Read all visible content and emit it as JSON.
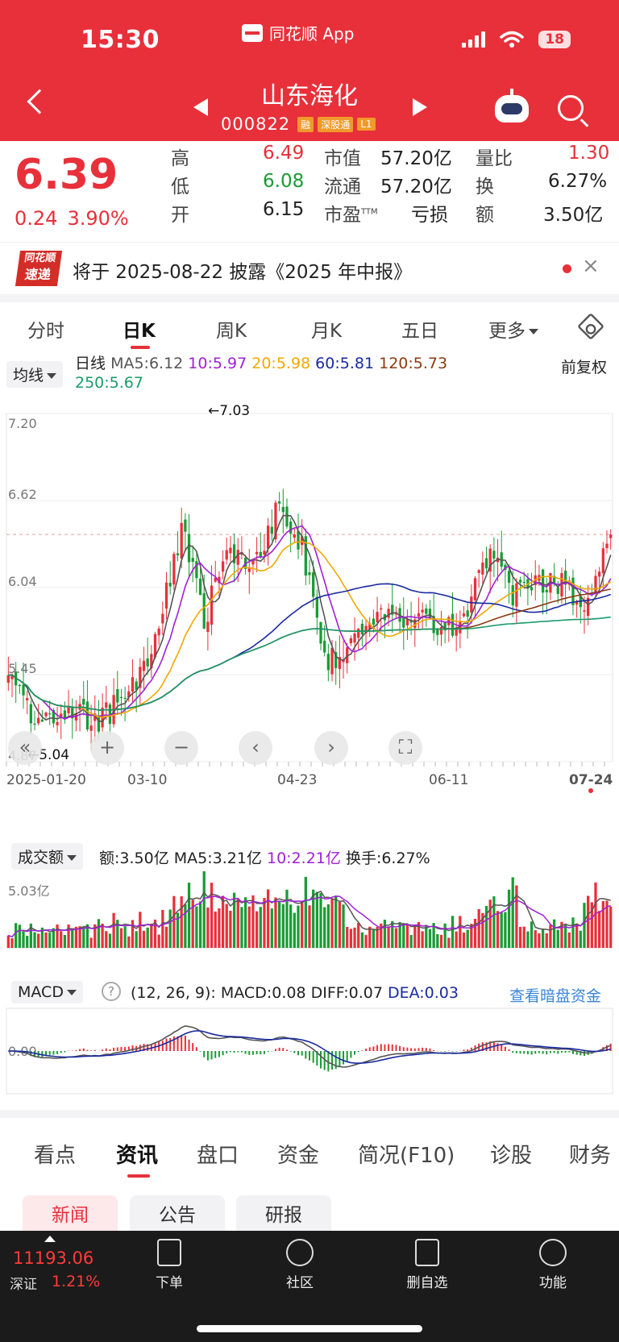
{
  "status": {
    "time": "15:30",
    "app_name": "同花顺 App",
    "battery": "18"
  },
  "header": {
    "stock_name": "山东海化",
    "stock_code": "000822",
    "tags": [
      "融",
      "深股通",
      "L1"
    ]
  },
  "quote": {
    "price": "6.39",
    "change": "0.24",
    "change_pct": "3.90%",
    "high_label": "高",
    "high": "6.49",
    "low_label": "低",
    "low": "6.08",
    "open_label": "开",
    "open": "6.15",
    "mcap_label": "市值",
    "mcap": "57.20亿",
    "float_label": "流通",
    "float": "57.20亿",
    "pe_label": "市盈",
    "pe_sup": "TTM",
    "pe": "亏损",
    "vr_label": "量比",
    "vr": "1.30",
    "turnover_label": "换",
    "turnover": "6.27%",
    "amount_label": "额",
    "amount": "3.50亿"
  },
  "notice": {
    "logo_line1": "同花顺",
    "logo_line2": "速递",
    "text": "将于 2025-08-22 披露《2025 年中报》",
    "close": "×"
  },
  "ktabs": {
    "items": [
      "分时",
      "日K",
      "周K",
      "月K",
      "五日",
      "更多"
    ],
    "active": "日K"
  },
  "kline": {
    "ma_dropdown": "均线",
    "legend_prefix": "日线",
    "ma5": "MA5:6.12",
    "ma10": "10:5.97",
    "ma20": "20:5.98",
    "ma60": "60:5.81",
    "ma120": "120:5.73",
    "ma250": "250:5.67",
    "adjust": "前复权",
    "y_ticks": [
      "7.20",
      "6.62",
      "6.04",
      "5.45",
      "4.87"
    ],
    "x_ticks": [
      "2025-01-20",
      "03-10",
      "04-23",
      "06-11",
      "07-24"
    ],
    "max_label": "←7.03",
    "min_label": "←5.04"
  },
  "volume": {
    "dropdown": "成交额",
    "amount": "额:3.50亿",
    "ma5": "MA5:3.21亿",
    "ma10": "10:2.21亿",
    "turnover": "换手:6.27%",
    "y_tick": "5.03亿"
  },
  "macd": {
    "dropdown": "MACD",
    "help": "?",
    "params": "(12, 26, 9):",
    "macd": "MACD:0.08",
    "diff": "DIFF:0.07",
    "dea": "DEA:0.03",
    "link": "查看暗盘资金",
    "zero_label": "0.00"
  },
  "chart_data": {
    "type": "candlestick",
    "y_range": [
      4.87,
      7.2
    ],
    "labeled_extremes": {
      "high": 7.03,
      "low": 5.04
    },
    "x_ticks": [
      "2025-01-20",
      "03-10",
      "04-23",
      "06-11",
      "07-24"
    ],
    "moving_averages": {
      "MA5": 6.12,
      "MA10": 5.97,
      "MA20": 5.98,
      "MA60": 5.81,
      "MA120": 5.73,
      "MA250": 5.67
    },
    "last_candle": {
      "open": 6.15,
      "high": 6.49,
      "low": 6.08,
      "close": 6.39
    },
    "reference_price": 6.39
  },
  "colors": {
    "up": "#e8303a",
    "down": "#1a9b35",
    "ma5": "#555555",
    "ma10": "#a020d8",
    "ma20": "#f0a800",
    "ma60": "#1a2aa0",
    "ma120": "#8b3a12",
    "ma250": "#1a9b6b"
  },
  "bottom_tabs": {
    "items": [
      "看点",
      "资讯",
      "盘口",
      "资金",
      "简况(F10)",
      "诊股",
      "财务"
    ],
    "active": "资讯"
  },
  "sub_tabs": {
    "items": [
      "新闻",
      "公告",
      "研报"
    ],
    "active": "新闻"
  },
  "navbar": {
    "index_value": "11193.06",
    "index_name": "深证",
    "index_pct": "1.21%",
    "items": [
      "下单",
      "社区",
      "删自选",
      "功能"
    ]
  }
}
